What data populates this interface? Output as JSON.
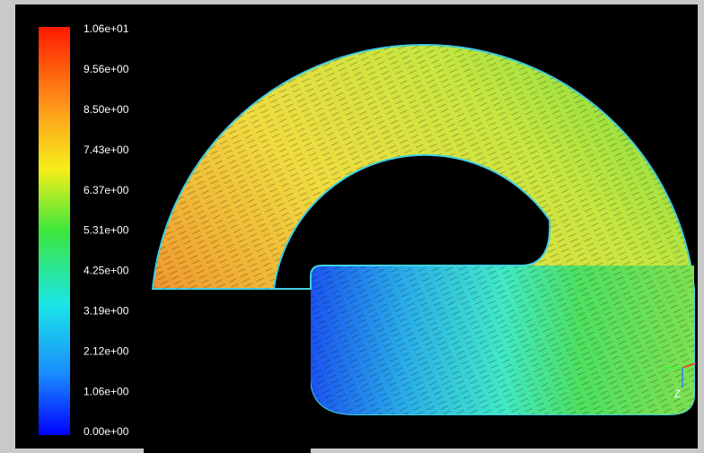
{
  "colorbar": {
    "labels": [
      "1.06e+01",
      "9.56e+00",
      "8.50e+00",
      "7.43e+00",
      "6.37e+00",
      "5.31e+00",
      "4.25e+00",
      "3.19e+00",
      "2.12e+00",
      "1.06e+00",
      "0.00e+00"
    ]
  },
  "axis_triad": {
    "label": "Z"
  }
}
